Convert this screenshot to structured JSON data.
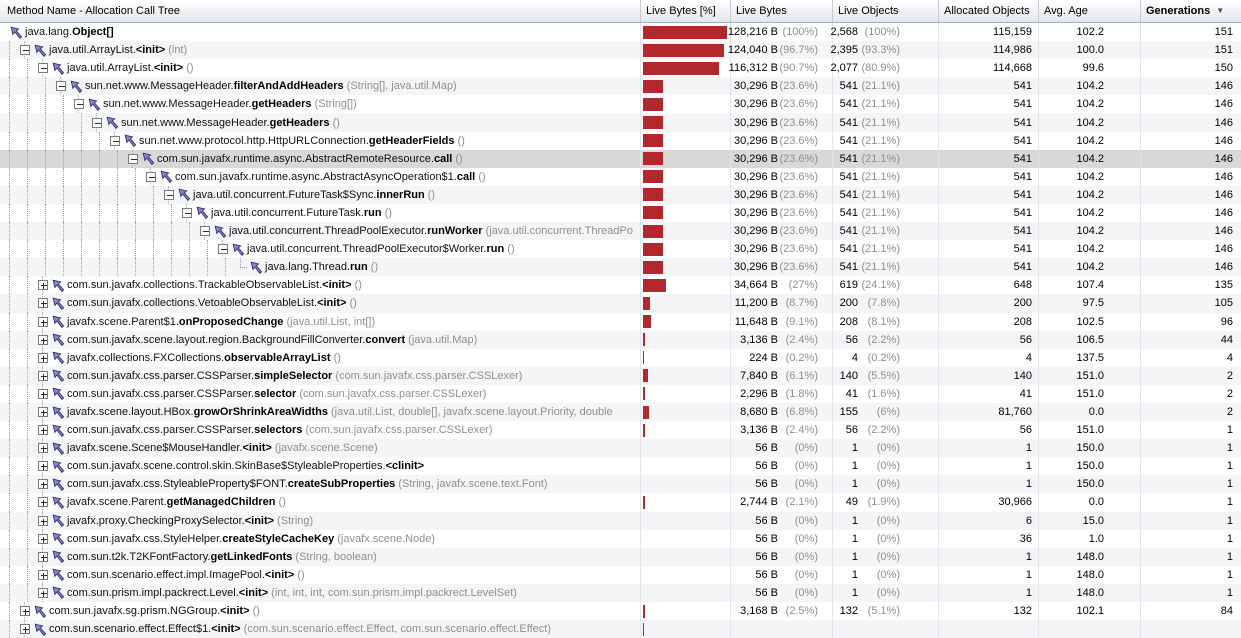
{
  "table": {
    "columns": [
      {
        "label": "Method Name - Allocation Call Tree"
      },
      {
        "label": "Live Bytes [%]"
      },
      {
        "label": "Live Bytes"
      },
      {
        "label": "Live Objects"
      },
      {
        "label": "Allocated Objects"
      },
      {
        "label": "Avg. Age"
      },
      {
        "label": "Generations",
        "sorted": "desc",
        "bold": true
      }
    ],
    "sort_icon": "▼",
    "rows": [
      {
        "level": 0,
        "expander": "none",
        "path": "java.lang.",
        "method": "Object[]",
        "args": "",
        "bar_pct": 100,
        "live_bytes": "128,216 B",
        "live_bytes_pct": "(100%)",
        "live_objects": "2,568",
        "live_objects_pct": "(100%)",
        "allocated_objects": "115,159",
        "avg_age": "102.2",
        "generations": "151",
        "selected": false
      },
      {
        "level": 1,
        "expander": "minus",
        "path": "java.util.ArrayList.",
        "method": "<init>",
        "args": "(int)",
        "bar_pct": 96.7,
        "live_bytes": "124,040 B",
        "live_bytes_pct": "(96.7%)",
        "live_objects": "2,395",
        "live_objects_pct": "(93.3%)",
        "allocated_objects": "114,986",
        "avg_age": "100.0",
        "generations": "151",
        "selected": false
      },
      {
        "level": 2,
        "expander": "minus",
        "path": "java.util.ArrayList.",
        "method": "<init>",
        "args": "()",
        "bar_pct": 90.7,
        "live_bytes": "116,312 B",
        "live_bytes_pct": "(90.7%)",
        "live_objects": "2,077",
        "live_objects_pct": "(80.9%)",
        "allocated_objects": "114,668",
        "avg_age": "99.6",
        "generations": "150",
        "selected": false
      },
      {
        "level": 3,
        "expander": "minus",
        "path": "sun.net.www.MessageHeader.",
        "method": "filterAndAddHeaders",
        "args": "(String[], java.util.Map)",
        "bar_pct": 23.6,
        "live_bytes": "30,296 B",
        "live_bytes_pct": "(23.6%)",
        "live_objects": "541",
        "live_objects_pct": "(21.1%)",
        "allocated_objects": "541",
        "avg_age": "104.2",
        "generations": "146",
        "selected": false
      },
      {
        "level": 4,
        "expander": "minus",
        "path": "sun.net.www.MessageHeader.",
        "method": "getHeaders",
        "args": "(String[])",
        "bar_pct": 23.6,
        "live_bytes": "30,296 B",
        "live_bytes_pct": "(23.6%)",
        "live_objects": "541",
        "live_objects_pct": "(21.1%)",
        "allocated_objects": "541",
        "avg_age": "104.2",
        "generations": "146",
        "selected": false
      },
      {
        "level": 5,
        "expander": "minus",
        "path": "sun.net.www.MessageHeader.",
        "method": "getHeaders",
        "args": "()",
        "bar_pct": 23.6,
        "live_bytes": "30,296 B",
        "live_bytes_pct": "(23.6%)",
        "live_objects": "541",
        "live_objects_pct": "(21.1%)",
        "allocated_objects": "541",
        "avg_age": "104.2",
        "generations": "146",
        "selected": false
      },
      {
        "level": 6,
        "expander": "minus",
        "path": "sun.net.www.protocol.http.HttpURLConnection.",
        "method": "getHeaderFields",
        "args": "()",
        "bar_pct": 23.6,
        "live_bytes": "30,296 B",
        "live_bytes_pct": "(23.6%)",
        "live_objects": "541",
        "live_objects_pct": "(21.1%)",
        "allocated_objects": "541",
        "avg_age": "104.2",
        "generations": "146",
        "selected": false
      },
      {
        "level": 7,
        "expander": "minus",
        "path": "com.sun.javafx.runtime.async.AbstractRemoteResource.",
        "method": "call",
        "args": "()",
        "bar_pct": 23.6,
        "live_bytes": "30,296 B",
        "live_bytes_pct": "(23.6%)",
        "live_objects": "541",
        "live_objects_pct": "(21.1%)",
        "allocated_objects": "541",
        "avg_age": "104.2",
        "generations": "146",
        "selected": true
      },
      {
        "level": 8,
        "expander": "minus",
        "path": "com.sun.javafx.runtime.async.AbstractAsyncOperation$1.",
        "method": "call",
        "args": "()",
        "bar_pct": 23.6,
        "live_bytes": "30,296 B",
        "live_bytes_pct": "(23.6%)",
        "live_objects": "541",
        "live_objects_pct": "(21.1%)",
        "allocated_objects": "541",
        "avg_age": "104.2",
        "generations": "146",
        "selected": false
      },
      {
        "level": 9,
        "expander": "minus",
        "path": "java.util.concurrent.FutureTask$Sync.",
        "method": "innerRun",
        "args": "()",
        "bar_pct": 23.6,
        "live_bytes": "30,296 B",
        "live_bytes_pct": "(23.6%)",
        "live_objects": "541",
        "live_objects_pct": "(21.1%)",
        "allocated_objects": "541",
        "avg_age": "104.2",
        "generations": "146",
        "selected": false
      },
      {
        "level": 10,
        "expander": "minus",
        "path": "java.util.concurrent.FutureTask.",
        "method": "run",
        "args": "()",
        "bar_pct": 23.6,
        "live_bytes": "30,296 B",
        "live_bytes_pct": "(23.6%)",
        "live_objects": "541",
        "live_objects_pct": "(21.1%)",
        "allocated_objects": "541",
        "avg_age": "104.2",
        "generations": "146",
        "selected": false
      },
      {
        "level": 11,
        "expander": "minus",
        "path": "java.util.concurrent.ThreadPoolExecutor.",
        "method": "runWorker",
        "args": "(java.util.concurrent.ThreadPo",
        "bar_pct": 23.6,
        "live_bytes": "30,296 B",
        "live_bytes_pct": "(23.6%)",
        "live_objects": "541",
        "live_objects_pct": "(21.1%)",
        "allocated_objects": "541",
        "avg_age": "104.2",
        "generations": "146",
        "selected": false
      },
      {
        "level": 12,
        "expander": "minus",
        "path": "java.util.concurrent.ThreadPoolExecutor$Worker.",
        "method": "run",
        "args": "()",
        "bar_pct": 23.6,
        "live_bytes": "30,296 B",
        "live_bytes_pct": "(23.6%)",
        "live_objects": "541",
        "live_objects_pct": "(21.1%)",
        "allocated_objects": "541",
        "avg_age": "104.2",
        "generations": "146",
        "selected": false
      },
      {
        "level": 13,
        "expander": "leaf",
        "path": "java.lang.Thread.",
        "method": "run",
        "args": "()",
        "bar_pct": 23.6,
        "live_bytes": "30,296 B",
        "live_bytes_pct": "(23.6%)",
        "live_objects": "541",
        "live_objects_pct": "(21.1%)",
        "allocated_objects": "541",
        "avg_age": "104.2",
        "generations": "146",
        "selected": false
      },
      {
        "level": 2,
        "expander": "plus",
        "path": "com.sun.javafx.collections.TrackableObservableList.",
        "method": "<init>",
        "args": "()",
        "bar_pct": 27,
        "live_bytes": "34,664 B",
        "live_bytes_pct": "(27%)",
        "live_objects": "619",
        "live_objects_pct": "(24.1%)",
        "allocated_objects": "648",
        "avg_age": "107.4",
        "generations": "135",
        "selected": false
      },
      {
        "level": 2,
        "expander": "plus",
        "path": "com.sun.javafx.collections.VetoableObservableList.",
        "method": "<init>",
        "args": "()",
        "bar_pct": 8.7,
        "live_bytes": "11,200 B",
        "live_bytes_pct": "(8.7%)",
        "live_objects": "200",
        "live_objects_pct": "(7.8%)",
        "allocated_objects": "200",
        "avg_age": "97.5",
        "generations": "105",
        "selected": false
      },
      {
        "level": 2,
        "expander": "plus",
        "path": "javafx.scene.Parent$1.",
        "method": "onProposedChange",
        "args": "(java.util.List, int[])",
        "bar_pct": 9.1,
        "live_bytes": "11,648 B",
        "live_bytes_pct": "(9.1%)",
        "live_objects": "208",
        "live_objects_pct": "(8.1%)",
        "allocated_objects": "208",
        "avg_age": "102.5",
        "generations": "96",
        "selected": false
      },
      {
        "level": 2,
        "expander": "plus",
        "path": "com.sun.javafx.scene.layout.region.BackgroundFillConverter.",
        "method": "convert",
        "args": "(java.util.Map)",
        "bar_pct": 2.4,
        "live_bytes": "3,136 B",
        "live_bytes_pct": "(2.4%)",
        "live_objects": "56",
        "live_objects_pct": "(2.2%)",
        "allocated_objects": "56",
        "avg_age": "106.5",
        "generations": "44",
        "selected": false
      },
      {
        "level": 2,
        "expander": "plus",
        "path": "javafx.collections.FXCollections.",
        "method": "observableArrayList",
        "args": "()",
        "bar_pct": 0.2,
        "live_bytes": "224 B",
        "live_bytes_pct": "(0.2%)",
        "live_objects": "4",
        "live_objects_pct": "(0.2%)",
        "allocated_objects": "4",
        "avg_age": "137.5",
        "generations": "4",
        "selected": false
      },
      {
        "level": 2,
        "expander": "plus",
        "path": "com.sun.javafx.css.parser.CSSParser.",
        "method": "simpleSelector",
        "args": "(com.sun.javafx.css.parser.CSSLexer)",
        "bar_pct": 6.1,
        "live_bytes": "7,840 B",
        "live_bytes_pct": "(6.1%)",
        "live_objects": "140",
        "live_objects_pct": "(5.5%)",
        "allocated_objects": "140",
        "avg_age": "151.0",
        "generations": "2",
        "selected": false
      },
      {
        "level": 2,
        "expander": "plus",
        "path": "com.sun.javafx.css.parser.CSSParser.",
        "method": "selector",
        "args": "(com.sun.javafx.css.parser.CSSLexer)",
        "bar_pct": 1.8,
        "live_bytes": "2,296 B",
        "live_bytes_pct": "(1.8%)",
        "live_objects": "41",
        "live_objects_pct": "(1.6%)",
        "allocated_objects": "41",
        "avg_age": "151.0",
        "generations": "2",
        "selected": false
      },
      {
        "level": 2,
        "expander": "plus",
        "path": "javafx.scene.layout.HBox.",
        "method": "growOrShrinkAreaWidths",
        "args": "(java.util.List, double[], javafx.scene.layout.Priority, double",
        "bar_pct": 6.8,
        "live_bytes": "8,680 B",
        "live_bytes_pct": "(6.8%)",
        "live_objects": "155",
        "live_objects_pct": "(6%)",
        "allocated_objects": "81,760",
        "avg_age": "0.0",
        "generations": "2",
        "selected": false
      },
      {
        "level": 2,
        "expander": "plus",
        "path": "com.sun.javafx.css.parser.CSSParser.",
        "method": "selectors",
        "args": "(com.sun.javafx.css.parser.CSSLexer)",
        "bar_pct": 2.4,
        "live_bytes": "3,136 B",
        "live_bytes_pct": "(2.4%)",
        "live_objects": "56",
        "live_objects_pct": "(2.2%)",
        "allocated_objects": "56",
        "avg_age": "151.0",
        "generations": "1",
        "selected": false
      },
      {
        "level": 2,
        "expander": "plus",
        "path": "javafx.scene.Scene$MouseHandler.",
        "method": "<init>",
        "args": "(javafx.scene.Scene)",
        "bar_pct": 0,
        "live_bytes": "56 B",
        "live_bytes_pct": "(0%)",
        "live_objects": "1",
        "live_objects_pct": "(0%)",
        "allocated_objects": "1",
        "avg_age": "150.0",
        "generations": "1",
        "selected": false
      },
      {
        "level": 2,
        "expander": "plus",
        "path": "com.sun.javafx.scene.control.skin.SkinBase$StyleableProperties.",
        "method": "<clinit>",
        "args": "",
        "bar_pct": 0,
        "live_bytes": "56 B",
        "live_bytes_pct": "(0%)",
        "live_objects": "1",
        "live_objects_pct": "(0%)",
        "allocated_objects": "1",
        "avg_age": "150.0",
        "generations": "1",
        "selected": false
      },
      {
        "level": 2,
        "expander": "plus",
        "path": "com.sun.javafx.css.StyleableProperty$FONT.",
        "method": "createSubProperties",
        "args": "(String, javafx.scene.text.Font)",
        "bar_pct": 0,
        "live_bytes": "56 B",
        "live_bytes_pct": "(0%)",
        "live_objects": "1",
        "live_objects_pct": "(0%)",
        "allocated_objects": "1",
        "avg_age": "150.0",
        "generations": "1",
        "selected": false
      },
      {
        "level": 2,
        "expander": "plus",
        "path": "javafx.scene.Parent.",
        "method": "getManagedChildren",
        "args": "()",
        "bar_pct": 2.1,
        "live_bytes": "2,744 B",
        "live_bytes_pct": "(2.1%)",
        "live_objects": "49",
        "live_objects_pct": "(1.9%)",
        "allocated_objects": "30,966",
        "avg_age": "0.0",
        "generations": "1",
        "selected": false
      },
      {
        "level": 2,
        "expander": "plus",
        "path": "javafx.proxy.CheckingProxySelector.",
        "method": "<init>",
        "args": "(String)",
        "bar_pct": 0,
        "live_bytes": "56 B",
        "live_bytes_pct": "(0%)",
        "live_objects": "1",
        "live_objects_pct": "(0%)",
        "allocated_objects": "6",
        "avg_age": "15.0",
        "generations": "1",
        "selected": false
      },
      {
        "level": 2,
        "expander": "plus",
        "path": "com.sun.javafx.css.StyleHelper.",
        "method": "createStyleCacheKey",
        "args": "(javafx.scene.Node)",
        "bar_pct": 0,
        "live_bytes": "56 B",
        "live_bytes_pct": "(0%)",
        "live_objects": "1",
        "live_objects_pct": "(0%)",
        "allocated_objects": "36",
        "avg_age": "1.0",
        "generations": "1",
        "selected": false
      },
      {
        "level": 2,
        "expander": "plus",
        "path": "com.sun.t2k.T2KFontFactory.",
        "method": "getLinkedFonts",
        "args": "(String, boolean)",
        "bar_pct": 0,
        "live_bytes": "56 B",
        "live_bytes_pct": "(0%)",
        "live_objects": "1",
        "live_objects_pct": "(0%)",
        "allocated_objects": "1",
        "avg_age": "148.0",
        "generations": "1",
        "selected": false
      },
      {
        "level": 2,
        "expander": "plus",
        "path": "com.sun.scenario.effect.impl.ImagePool.",
        "method": "<init>",
        "args": "()",
        "bar_pct": 0,
        "live_bytes": "56 B",
        "live_bytes_pct": "(0%)",
        "live_objects": "1",
        "live_objects_pct": "(0%)",
        "allocated_objects": "1",
        "avg_age": "148.0",
        "generations": "1",
        "selected": false
      },
      {
        "level": 2,
        "expander": "plus",
        "path": "com.sun.prism.impl.packrect.Level.",
        "method": "<init>",
        "args": "(int, int, int, com.sun.prism.impl.packrect.LevelSet)",
        "bar_pct": 0,
        "live_bytes": "56 B",
        "live_bytes_pct": "(0%)",
        "live_objects": "1",
        "live_objects_pct": "(0%)",
        "allocated_objects": "1",
        "avg_age": "148.0",
        "generations": "1",
        "selected": false
      },
      {
        "level": 1,
        "expander": "plus",
        "path": "com.sun.javafx.sg.prism.NGGroup.",
        "method": "<init>",
        "args": "()",
        "bar_pct": 2.5,
        "live_bytes": "3,168 B",
        "live_bytes_pct": "(2.5%)",
        "live_objects": "132",
        "live_objects_pct": "(5.1%)",
        "allocated_objects": "132",
        "avg_age": "102.1",
        "generations": "84",
        "selected": false
      },
      {
        "level": 1,
        "expander": "plus",
        "path": "com.sun.scenario.effect.Effect$1.",
        "method": "<init>",
        "args": "(com.sun.scenario.effect.Effect, com.sun.scenario.effect.Effect)",
        "bar_pct": 1,
        "live_bytes": "",
        "live_bytes_pct": "",
        "live_objects": "",
        "live_objects_pct": "",
        "allocated_objects": "",
        "avg_age": "",
        "generations": "",
        "selected": false
      }
    ]
  },
  "colors": {
    "bar_fill": "#b3282d",
    "selection_bg": "#d8d8d8",
    "stripe_bg": "#f3f5f7"
  }
}
